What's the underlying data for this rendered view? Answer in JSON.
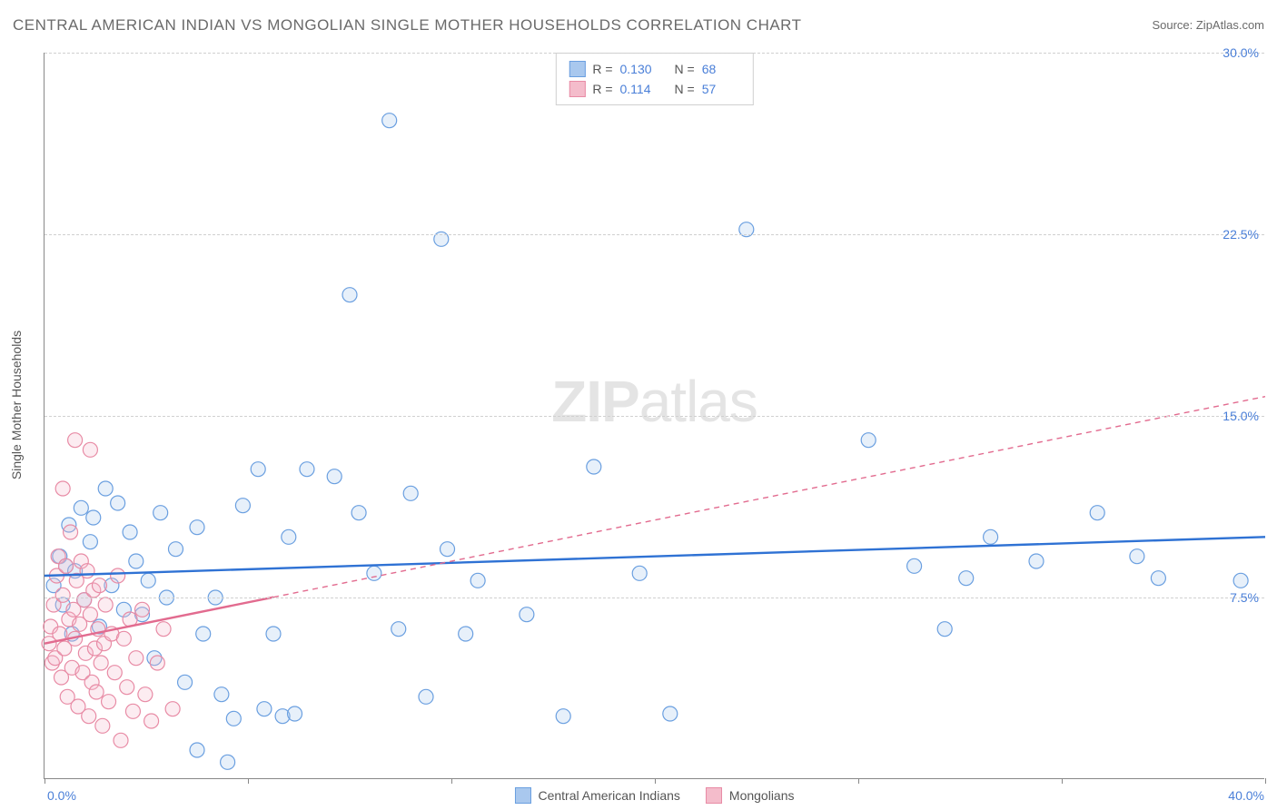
{
  "title": "CENTRAL AMERICAN INDIAN VS MONGOLIAN SINGLE MOTHER HOUSEHOLDS CORRELATION CHART",
  "source_label": "Source: ZipAtlas.com",
  "watermark": {
    "part1": "ZIP",
    "part2": "atlas"
  },
  "y_axis_title": "Single Mother Households",
  "chart": {
    "type": "scatter",
    "xlim": [
      0,
      40
    ],
    "ylim": [
      0,
      30
    ],
    "x_tick_label_min": "0.0%",
    "x_tick_label_max": "40.0%",
    "x_ticks_at": [
      0,
      6.67,
      13.33,
      20,
      26.67,
      33.33,
      40
    ],
    "y_gridlines": [
      7.5,
      15.0,
      22.5,
      30.0
    ],
    "y_labels": [
      "7.5%",
      "15.0%",
      "22.5%",
      "30.0%"
    ],
    "background_color": "#ffffff",
    "grid_color": "#d0d0d0",
    "axis_color": "#888888",
    "label_color": "#4a7fd8",
    "text_color": "#555555",
    "marker_radius": 8,
    "marker_stroke_width": 1.2,
    "marker_fill_opacity": 0.28,
    "trend_line_width": 2.4,
    "trend_dash": "6,5",
    "series": [
      {
        "name": "Central American Indians",
        "color_fill": "#a9c8ee",
        "color_stroke": "#6a9fe0",
        "trend_color": "#2f72d4",
        "trend": {
          "y_at_x0": 8.4,
          "y_at_xmax": 10.0,
          "solid_until_x": 40
        },
        "points": [
          [
            0.3,
            8.0
          ],
          [
            0.5,
            9.2
          ],
          [
            0.6,
            7.2
          ],
          [
            0.7,
            8.8
          ],
          [
            0.8,
            10.5
          ],
          [
            0.9,
            6.0
          ],
          [
            1.0,
            8.6
          ],
          [
            1.2,
            11.2
          ],
          [
            1.3,
            7.4
          ],
          [
            1.5,
            9.8
          ],
          [
            1.6,
            10.8
          ],
          [
            1.8,
            6.3
          ],
          [
            2.0,
            12.0
          ],
          [
            2.2,
            8.0
          ],
          [
            2.4,
            11.4
          ],
          [
            2.6,
            7.0
          ],
          [
            2.8,
            10.2
          ],
          [
            3.0,
            9.0
          ],
          [
            3.2,
            6.8
          ],
          [
            3.4,
            8.2
          ],
          [
            3.6,
            5.0
          ],
          [
            3.8,
            11.0
          ],
          [
            4.0,
            7.5
          ],
          [
            4.3,
            9.5
          ],
          [
            4.6,
            4.0
          ],
          [
            5.0,
            1.2
          ],
          [
            5.0,
            10.4
          ],
          [
            5.2,
            6.0
          ],
          [
            5.6,
            7.5
          ],
          [
            5.8,
            3.5
          ],
          [
            6.2,
            2.5
          ],
          [
            6.5,
            11.3
          ],
          [
            7.0,
            12.8
          ],
          [
            7.2,
            2.9
          ],
          [
            7.5,
            6.0
          ],
          [
            7.8,
            2.6
          ],
          [
            8.0,
            10.0
          ],
          [
            8.2,
            2.7
          ],
          [
            8.6,
            12.8
          ],
          [
            9.5,
            12.5
          ],
          [
            10.0,
            20.0
          ],
          [
            10.3,
            11.0
          ],
          [
            10.8,
            8.5
          ],
          [
            11.3,
            27.2
          ],
          [
            11.6,
            6.2
          ],
          [
            12.0,
            11.8
          ],
          [
            12.5,
            3.4
          ],
          [
            13.0,
            22.3
          ],
          [
            13.2,
            9.5
          ],
          [
            13.8,
            6.0
          ],
          [
            14.2,
            8.2
          ],
          [
            15.8,
            6.8
          ],
          [
            17.0,
            2.6
          ],
          [
            18.0,
            12.9
          ],
          [
            19.5,
            8.5
          ],
          [
            20.5,
            2.7
          ],
          [
            23.0,
            22.7
          ],
          [
            27.0,
            14.0
          ],
          [
            28.5,
            8.8
          ],
          [
            29.5,
            6.2
          ],
          [
            30.2,
            8.3
          ],
          [
            31.0,
            10.0
          ],
          [
            32.5,
            9.0
          ],
          [
            34.5,
            11.0
          ],
          [
            35.8,
            9.2
          ],
          [
            36.5,
            8.3
          ],
          [
            39.2,
            8.2
          ],
          [
            6.0,
            0.7
          ]
        ]
      },
      {
        "name": "Mongolians",
        "color_fill": "#f4bccb",
        "color_stroke": "#e88ba5",
        "trend_color": "#e26b8f",
        "trend": {
          "y_at_x0": 5.6,
          "y_at_xmax": 15.8,
          "solid_until_x": 7.5
        },
        "points": [
          [
            0.15,
            5.6
          ],
          [
            0.2,
            6.3
          ],
          [
            0.25,
            4.8
          ],
          [
            0.3,
            7.2
          ],
          [
            0.35,
            5.0
          ],
          [
            0.4,
            8.4
          ],
          [
            0.45,
            9.2
          ],
          [
            0.5,
            6.0
          ],
          [
            0.55,
            4.2
          ],
          [
            0.6,
            7.6
          ],
          [
            0.65,
            5.4
          ],
          [
            0.7,
            8.8
          ],
          [
            0.75,
            3.4
          ],
          [
            0.8,
            6.6
          ],
          [
            0.85,
            10.2
          ],
          [
            0.9,
            4.6
          ],
          [
            0.95,
            7.0
          ],
          [
            1.0,
            5.8
          ],
          [
            1.05,
            8.2
          ],
          [
            1.1,
            3.0
          ],
          [
            1.15,
            6.4
          ],
          [
            1.2,
            9.0
          ],
          [
            1.25,
            4.4
          ],
          [
            1.3,
            7.4
          ],
          [
            1.35,
            5.2
          ],
          [
            1.4,
            8.6
          ],
          [
            1.45,
            2.6
          ],
          [
            1.5,
            6.8
          ],
          [
            1.55,
            4.0
          ],
          [
            1.6,
            7.8
          ],
          [
            1.65,
            5.4
          ],
          [
            1.7,
            3.6
          ],
          [
            1.75,
            6.2
          ],
          [
            1.8,
            8.0
          ],
          [
            1.85,
            4.8
          ],
          [
            1.9,
            2.2
          ],
          [
            1.95,
            5.6
          ],
          [
            2.0,
            7.2
          ],
          [
            2.1,
            3.2
          ],
          [
            2.2,
            6.0
          ],
          [
            2.3,
            4.4
          ],
          [
            2.4,
            8.4
          ],
          [
            2.5,
            1.6
          ],
          [
            2.6,
            5.8
          ],
          [
            2.7,
            3.8
          ],
          [
            2.8,
            6.6
          ],
          [
            2.9,
            2.8
          ],
          [
            3.0,
            5.0
          ],
          [
            3.2,
            7.0
          ],
          [
            3.3,
            3.5
          ],
          [
            3.5,
            2.4
          ],
          [
            3.7,
            4.8
          ],
          [
            3.9,
            6.2
          ],
          [
            4.2,
            2.9
          ],
          [
            1.0,
            14.0
          ],
          [
            1.5,
            13.6
          ],
          [
            0.6,
            12.0
          ]
        ]
      }
    ]
  },
  "stats": [
    {
      "series_idx": 0,
      "r_label": "R =",
      "r_value": "0.130",
      "n_label": "N =",
      "n_value": "68"
    },
    {
      "series_idx": 1,
      "r_label": "R =",
      "r_value": "0.114",
      "n_label": "N =",
      "n_value": "57"
    }
  ]
}
